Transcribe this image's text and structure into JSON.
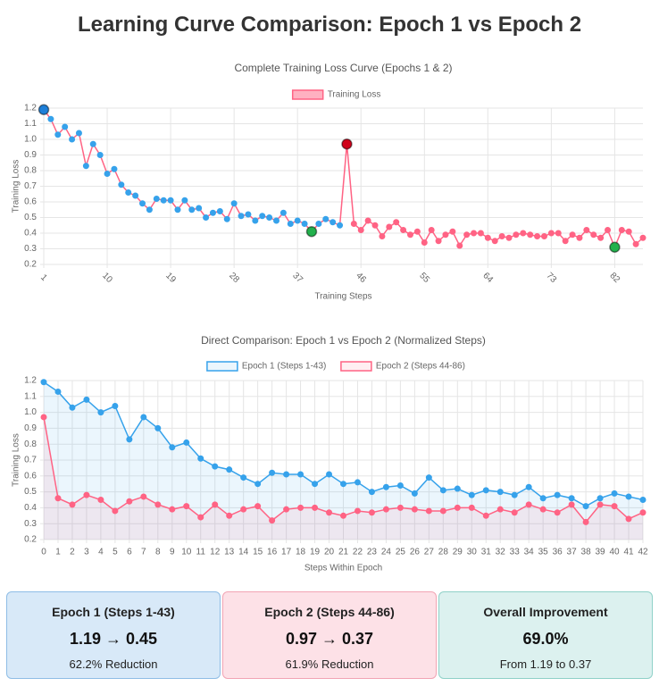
{
  "title": "Learning Curve Comparison: Epoch 1 vs Epoch 2",
  "chart_data": [
    {
      "type": "line",
      "title": "Complete Training Loss Curve (Epochs 1 & 2)",
      "x_label": "Training Steps",
      "y_label": "Training Loss",
      "x": [
        1,
        2,
        3,
        4,
        5,
        6,
        7,
        8,
        9,
        10,
        11,
        12,
        13,
        14,
        15,
        16,
        17,
        18,
        19,
        20,
        21,
        22,
        23,
        24,
        25,
        26,
        27,
        28,
        29,
        30,
        31,
        32,
        33,
        34,
        35,
        36,
        37,
        38,
        39,
        40,
        41,
        42,
        43,
        44,
        45,
        46,
        47,
        48,
        49,
        50,
        51,
        52,
        53,
        54,
        55,
        56,
        57,
        58,
        59,
        60,
        61,
        62,
        63,
        64,
        65,
        66,
        67,
        68,
        69,
        70,
        71,
        72,
        73,
        74,
        75,
        76,
        77,
        78,
        79,
        80,
        81,
        82,
        83,
        84,
        85,
        86
      ],
      "series": [
        {
          "name": "Training Loss",
          "color": "#ff6384",
          "values": [
            1.19,
            1.13,
            1.03,
            1.08,
            1.0,
            1.04,
            0.83,
            0.97,
            0.9,
            0.78,
            0.81,
            0.71,
            0.66,
            0.64,
            0.59,
            0.55,
            0.62,
            0.61,
            0.61,
            0.55,
            0.61,
            0.55,
            0.56,
            0.5,
            0.53,
            0.54,
            0.49,
            0.59,
            0.51,
            0.52,
            0.48,
            0.51,
            0.5,
            0.48,
            0.53,
            0.46,
            0.48,
            0.46,
            0.41,
            0.46,
            0.49,
            0.47,
            0.45,
            0.97,
            0.46,
            0.42,
            0.48,
            0.45,
            0.38,
            0.44,
            0.47,
            0.42,
            0.39,
            0.41,
            0.34,
            0.42,
            0.35,
            0.39,
            0.41,
            0.32,
            0.39,
            0.4,
            0.4,
            0.37,
            0.35,
            0.38,
            0.37,
            0.39,
            0.4,
            0.39,
            0.38,
            0.38,
            0.4,
            0.4,
            0.35,
            0.39,
            0.37,
            0.42,
            0.39,
            0.37,
            0.42,
            0.31,
            0.42,
            0.41,
            0.33,
            0.37
          ],
          "point_colors": [
            {
              "from": 0,
              "color": "#36a2eb"
            },
            {
              "from": 43,
              "color": "#ff6384"
            }
          ],
          "highlights": [
            {
              "at": 0,
              "color": "#1e7fd8"
            },
            {
              "at": 38,
              "color": "#22b14c"
            },
            {
              "at": 43,
              "color": "#d0021b"
            },
            {
              "at": 81,
              "color": "#22b14c"
            }
          ]
        }
      ],
      "xlim": [
        1,
        86
      ],
      "xticks": [
        1,
        10,
        19,
        28,
        37,
        46,
        55,
        64,
        73,
        82
      ],
      "ylim": [
        0.2,
        1.2
      ],
      "yticks": [
        0.2,
        0.3,
        0.4,
        0.5,
        0.6,
        0.7,
        0.8,
        0.9,
        {
          "value": 1,
          "label": "1.0"
        },
        1.1,
        1.2
      ],
      "grid": true,
      "legend": "top"
    },
    {
      "type": "line",
      "title": "Direct Comparison: Epoch 1 vs Epoch 2 (Normalized Steps)",
      "x_label": "Steps Within Epoch",
      "y_label": "Training Loss",
      "x": [
        0,
        1,
        2,
        3,
        4,
        5,
        6,
        7,
        8,
        9,
        10,
        11,
        12,
        13,
        14,
        15,
        16,
        17,
        18,
        19,
        20,
        21,
        22,
        23,
        24,
        25,
        26,
        27,
        28,
        29,
        30,
        31,
        32,
        33,
        34,
        35,
        36,
        37,
        38,
        39,
        40,
        41,
        42
      ],
      "series": [
        {
          "name": "Epoch 1 (Steps 1-43)",
          "color": "#36a2eb",
          "fill": "rgba(54,162,235,0.1)",
          "values": [
            1.19,
            1.13,
            1.03,
            1.08,
            1.0,
            1.04,
            0.83,
            0.97,
            0.9,
            0.78,
            0.81,
            0.71,
            0.66,
            0.64,
            0.59,
            0.55,
            0.62,
            0.61,
            0.61,
            0.55,
            0.61,
            0.55,
            0.56,
            0.5,
            0.53,
            0.54,
            0.49,
            0.59,
            0.51,
            0.52,
            0.48,
            0.51,
            0.5,
            0.48,
            0.53,
            0.46,
            0.48,
            0.46,
            0.41,
            0.46,
            0.49,
            0.47,
            0.45
          ]
        },
        {
          "name": "Epoch 2 (Steps 44-86)",
          "color": "#ff6384",
          "fill": "rgba(255,99,132,0.1)",
          "values": [
            0.97,
            0.46,
            0.42,
            0.48,
            0.45,
            0.38,
            0.44,
            0.47,
            0.42,
            0.39,
            0.41,
            0.34,
            0.42,
            0.35,
            0.39,
            0.41,
            0.32,
            0.39,
            0.4,
            0.4,
            0.37,
            0.35,
            0.38,
            0.37,
            0.39,
            0.4,
            0.39,
            0.38,
            0.38,
            0.4,
            0.4,
            0.35,
            0.39,
            0.37,
            0.42,
            0.39,
            0.37,
            0.42,
            0.31,
            0.42,
            0.41,
            0.33,
            0.37
          ]
        }
      ],
      "xlim": [
        0,
        42
      ],
      "xticks": [
        0,
        1,
        2,
        3,
        4,
        5,
        6,
        7,
        8,
        9,
        10,
        11,
        12,
        13,
        14,
        15,
        16,
        17,
        18,
        19,
        20,
        21,
        22,
        23,
        24,
        25,
        26,
        27,
        28,
        29,
        30,
        31,
        32,
        33,
        34,
        35,
        36,
        37,
        38,
        39,
        40,
        41,
        42
      ],
      "ylim": [
        0.2,
        1.2
      ],
      "yticks": [
        0.2,
        0.3,
        0.4,
        0.5,
        0.6,
        0.7,
        0.8,
        0.9,
        {
          "value": 1,
          "label": "1.0"
        },
        1.1,
        1.2
      ],
      "grid": true,
      "legend": "top"
    }
  ],
  "cards": [
    {
      "title": "Epoch 1 (Steps 1-43)",
      "main": "1.19 → 0.45",
      "sub": "62.2% Reduction"
    },
    {
      "title": "Epoch 2 (Steps 44-86)",
      "main": "0.97 → 0.37",
      "sub": "61.9% Reduction"
    },
    {
      "title": "Overall Improvement",
      "main": "69.0%",
      "sub": "From 1.19 to 0.37"
    }
  ]
}
